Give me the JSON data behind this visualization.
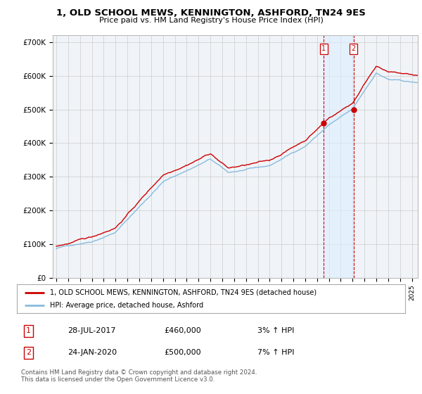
{
  "title": "1, OLD SCHOOL MEWS, KENNINGTON, ASHFORD, TN24 9ES",
  "subtitle": "Price paid vs. HM Land Registry's House Price Index (HPI)",
  "ylim": [
    0,
    720000
  ],
  "yticks": [
    0,
    100000,
    200000,
    300000,
    400000,
    500000,
    600000,
    700000
  ],
  "ytick_labels": [
    "£0",
    "£100K",
    "£200K",
    "£300K",
    "£400K",
    "£500K",
    "£600K",
    "£700K"
  ],
  "line1_color": "#cc0000",
  "line2_color": "#88bbdd",
  "marker1_color": "#cc0000",
  "vline_color": "#cc0000",
  "shade_color": "#ddeeff",
  "legend1_label": "1, OLD SCHOOL MEWS, KENNINGTON, ASHFORD, TN24 9ES (detached house)",
  "legend2_label": "HPI: Average price, detached house, Ashford",
  "transaction1_date": "28-JUL-2017",
  "transaction1_price": "£460,000",
  "transaction1_hpi": "3% ↑ HPI",
  "transaction1_year": 2017.57,
  "transaction1_value": 460000,
  "transaction2_date": "24-JAN-2020",
  "transaction2_price": "£500,000",
  "transaction2_hpi": "7% ↑ HPI",
  "transaction2_year": 2020.07,
  "transaction2_value": 500000,
  "footer": "Contains HM Land Registry data © Crown copyright and database right 2024.\nThis data is licensed under the Open Government Licence v3.0.",
  "plot_bg": "#f0f4f8",
  "grid_color": "#cccccc"
}
